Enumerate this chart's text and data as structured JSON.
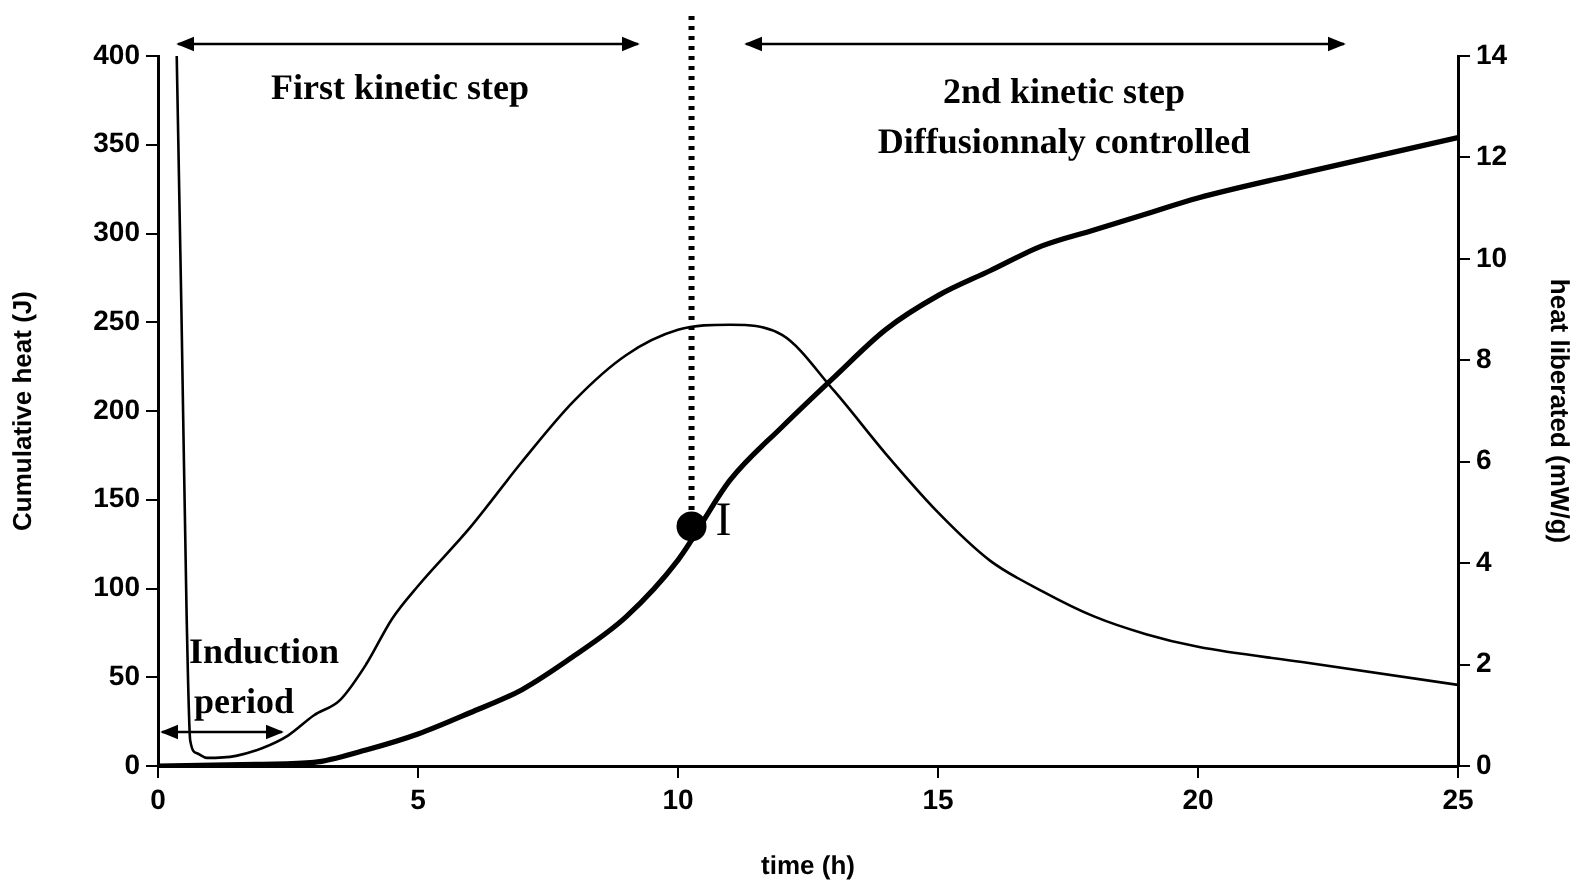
{
  "chart_data": {
    "type": "line",
    "xlabel": "time (h)",
    "ylabel": "Cumulative heat (J)",
    "y2label": "heat liberated (mW/g)",
    "xlim": [
      0,
      25
    ],
    "xticks": [
      0,
      5,
      10,
      15,
      20,
      25
    ],
    "ylim": [
      0,
      400
    ],
    "yticks": [
      0,
      50,
      100,
      150,
      200,
      250,
      300,
      350,
      400
    ],
    "y2lim": [
      0,
      14
    ],
    "y2ticks": [
      0,
      2,
      4,
      6,
      8,
      10,
      12,
      14
    ],
    "grid": false,
    "legend": false,
    "marker": "none",
    "line_style": "solid",
    "series": [
      {
        "type": "line",
        "axis": "y2",
        "color": "#000000",
        "x": [
          0.36,
          0.45,
          0.55,
          0.62,
          0.75,
          0.94,
          1.5,
          2,
          2.5,
          3,
          3.5,
          4,
          4.5,
          5,
          6,
          7,
          8,
          9,
          10,
          11,
          12,
          13,
          14,
          15,
          16,
          17,
          18,
          19,
          20,
          22,
          25
        ],
        "values": [
          14,
          9,
          3,
          0.5,
          0.25,
          0.16,
          0.2,
          0.35,
          0.6,
          1.0,
          1.3,
          2.0,
          2.9,
          3.55,
          4.7,
          6.0,
          7.2,
          8.1,
          8.6,
          8.7,
          8.5,
          7.4,
          6.15,
          5.0,
          4.05,
          3.45,
          2.95,
          2.6,
          2.35,
          2.05,
          1.6
        ]
      },
      {
        "type": "line",
        "axis": "y",
        "color": "#000000",
        "x": [
          0,
          2,
          3,
          4,
          5,
          6,
          7,
          8,
          9,
          10,
          11,
          12,
          13,
          14,
          15,
          16,
          17,
          18,
          19,
          20,
          22,
          25
        ],
        "values": [
          0,
          1,
          2,
          9,
          18,
          30,
          43,
          62,
          84,
          116,
          161,
          191,
          219,
          246,
          265,
          279,
          293,
          302,
          311,
          320,
          334,
          354
        ]
      },
      {
        "type": "scatter",
        "axis": "y",
        "color": "#000000",
        "marker": "circle",
        "x": [
          10.26
        ],
        "values": [
          135
        ]
      }
    ],
    "ref_lines": [
      {
        "axis": "x",
        "value": 10.26,
        "line_style": "dotted",
        "color": "#000000"
      }
    ],
    "annotations": [
      "First kinetic step",
      "2nd kinetic step",
      "Diffusionnaly controlled",
      "Induction",
      "period",
      {
        "text": "I",
        "x": 10.26,
        "y": 135
      }
    ]
  }
}
